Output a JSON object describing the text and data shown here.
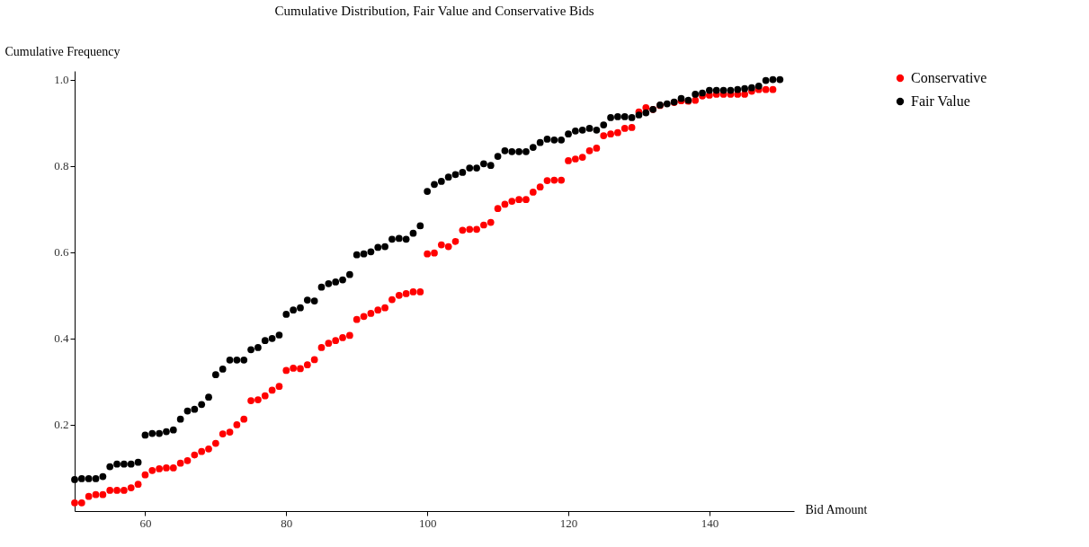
{
  "chart_data": {
    "type": "scatter",
    "title": "Cumulative Distribution, Fair Value and Conservative Bids",
    "xlabel": "Bid Amount",
    "ylabel": "Cumulative Frequency",
    "x": [
      50,
      51,
      52,
      53,
      54,
      55,
      56,
      57,
      58,
      59,
      60,
      61,
      62,
      63,
      64,
      65,
      66,
      67,
      68,
      69,
      70,
      71,
      72,
      73,
      74,
      75,
      76,
      77,
      78,
      79,
      80,
      81,
      82,
      83,
      84,
      85,
      86,
      87,
      88,
      89,
      90,
      91,
      92,
      93,
      94,
      95,
      96,
      97,
      98,
      99,
      100,
      101,
      102,
      103,
      104,
      105,
      106,
      107,
      108,
      109,
      110,
      111,
      112,
      113,
      114,
      115,
      116,
      117,
      118,
      119,
      120,
      121,
      122,
      123,
      124,
      125,
      126,
      127,
      128,
      129,
      130,
      131,
      132,
      133,
      134,
      135,
      136,
      137,
      138,
      139,
      140,
      141,
      142,
      143,
      144,
      145,
      146,
      147,
      148,
      149,
      150
    ],
    "series": [
      {
        "name": "Conservative",
        "color": "#ff0000",
        "values": [
          0.019,
          0.019,
          0.034,
          0.038,
          0.038,
          0.048,
          0.048,
          0.048,
          0.054,
          0.062,
          0.084,
          0.094,
          0.098,
          0.1,
          0.1,
          0.111,
          0.117,
          0.13,
          0.138,
          0.144,
          0.157,
          0.179,
          0.183,
          0.2,
          0.213,
          0.256,
          0.258,
          0.267,
          0.28,
          0.289,
          0.326,
          0.331,
          0.33,
          0.339,
          0.351,
          0.379,
          0.389,
          0.395,
          0.402,
          0.407,
          0.444,
          0.451,
          0.458,
          0.466,
          0.471,
          0.49,
          0.5,
          0.504,
          0.508,
          0.508,
          0.596,
          0.598,
          0.617,
          0.613,
          0.625,
          0.651,
          0.653,
          0.653,
          0.663,
          0.669,
          0.701,
          0.711,
          0.718,
          0.722,
          0.722,
          0.739,
          0.751,
          0.766,
          0.767,
          0.767,
          0.812,
          0.816,
          0.82,
          0.835,
          0.841,
          0.87,
          0.874,
          0.877,
          0.887,
          0.889,
          0.925,
          0.935,
          0.931,
          0.94,
          null,
          0.947,
          0.951,
          0.95,
          0.952,
          0.962,
          0.964,
          0.966,
          0.966,
          0.966,
          0.966,
          0.966,
          0.973,
          0.977,
          0.977,
          0.977,
          null
        ]
      },
      {
        "name": "Fair Value",
        "color": "#000000",
        "values": [
          0.073,
          0.075,
          0.075,
          0.075,
          0.08,
          0.103,
          0.109,
          0.109,
          0.109,
          0.113,
          0.176,
          0.18,
          0.18,
          0.184,
          0.188,
          0.213,
          0.232,
          0.236,
          0.247,
          0.264,
          0.316,
          0.329,
          0.35,
          0.35,
          0.35,
          0.374,
          0.379,
          0.395,
          0.4,
          0.408,
          0.456,
          0.466,
          0.471,
          0.489,
          0.487,
          0.519,
          0.527,
          0.531,
          0.536,
          0.548,
          0.594,
          0.596,
          0.601,
          0.611,
          0.613,
          0.63,
          0.632,
          0.63,
          0.644,
          0.661,
          0.741,
          0.757,
          0.764,
          0.774,
          0.78,
          0.785,
          0.795,
          0.795,
          0.805,
          0.801,
          0.822,
          0.835,
          0.833,
          0.833,
          0.833,
          0.843,
          0.854,
          0.862,
          0.86,
          0.86,
          0.874,
          0.881,
          0.883,
          0.887,
          0.883,
          0.895,
          0.912,
          0.914,
          0.914,
          0.912,
          0.918,
          0.923,
          0.931,
          0.941,
          0.944,
          0.948,
          0.956,
          0.952,
          0.966,
          0.969,
          0.975,
          0.975,
          0.975,
          0.975,
          0.977,
          0.979,
          0.981,
          0.985,
          0.998,
          1.0,
          1.0
        ]
      }
    ],
    "xlim": [
      50,
      152
    ],
    "xticks": [
      60,
      80,
      100,
      120,
      140
    ],
    "ylim": [
      0,
      1.02
    ],
    "yticks": [
      {
        "value": 0.2,
        "label": "0.2"
      },
      {
        "value": 0.4,
        "label": "0.4"
      },
      {
        "value": 0.6,
        "label": "0.6"
      },
      {
        "value": 0.8,
        "label": "0.8"
      },
      {
        "value": 1.0,
        "label": "1.0"
      }
    ],
    "grid": false,
    "legend": "right",
    "marker": "circle"
  }
}
